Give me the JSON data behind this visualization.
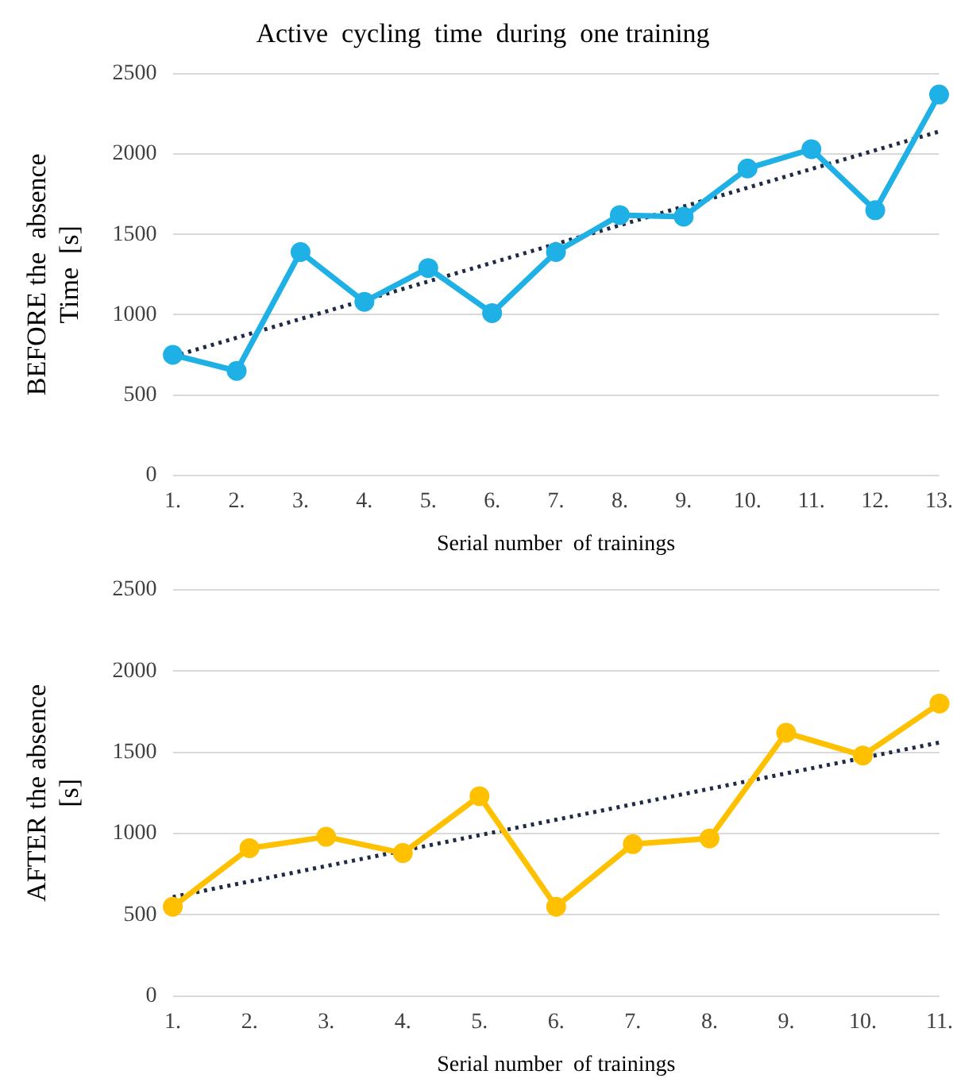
{
  "chart_data": [
    {
      "type": "line",
      "title": "Active  cycling  time  during  one training",
      "xlabel": "Serial number  of trainings",
      "ylabel": "BEFORE the  absence\nTime  [s]",
      "categories": [
        "1.",
        "2.",
        "3.",
        "4.",
        "5.",
        "6.",
        "7.",
        "8.",
        "9.",
        "10.",
        "11.",
        "12.",
        "13."
      ],
      "ylim": [
        0,
        2500
      ],
      "yticks": [
        0,
        500,
        1000,
        1500,
        2000,
        2500
      ],
      "grid": "y",
      "series": [
        {
          "color": "#1fb0e6",
          "marker": "circle",
          "line_style": "solid",
          "values": [
            750,
            650,
            1390,
            1080,
            1290,
            1010,
            1390,
            1620,
            1610,
            1910,
            2030,
            1650,
            2370
          ]
        },
        {
          "color": "#1f2a44",
          "marker": "none",
          "line_style": "dotted",
          "values": [
            740,
            null,
            null,
            null,
            null,
            null,
            null,
            null,
            null,
            null,
            null,
            null,
            2140
          ]
        }
      ]
    },
    {
      "type": "line",
      "xlabel": "Serial number  of trainings",
      "ylabel": "AFTER the absence\n[s]",
      "categories": [
        "1.",
        "2.",
        "3.",
        "4.",
        "5.",
        "6.",
        "7.",
        "8.",
        "9.",
        "10.",
        "11."
      ],
      "ylim": [
        0,
        2500
      ],
      "yticks": [
        0,
        500,
        1000,
        1500,
        2000,
        2500
      ],
      "grid": "y",
      "series": [
        {
          "color": "#ffc000",
          "marker": "circle",
          "line_style": "solid",
          "values": [
            550,
            910,
            980,
            880,
            1230,
            550,
            935,
            970,
            1620,
            1480,
            1800
          ]
        },
        {
          "color": "#1f2a44",
          "marker": "none",
          "line_style": "dotted",
          "values": [
            610,
            null,
            null,
            null,
            null,
            null,
            null,
            null,
            null,
            null,
            1560
          ]
        }
      ]
    }
  ]
}
